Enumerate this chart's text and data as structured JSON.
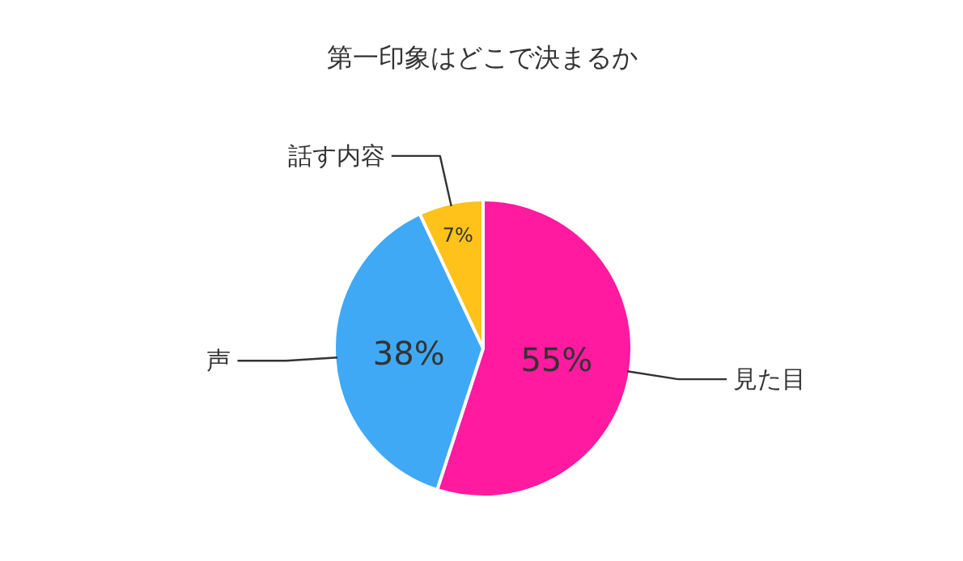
{
  "chart_data": {
    "type": "pie",
    "title": "第一印象はどこで決まるか",
    "categories": [
      "見た目",
      "声",
      "話す内容"
    ],
    "values": [
      55,
      38,
      7
    ],
    "colors": [
      "#ff1aa0",
      "#3fa9f5",
      "#ffc21a"
    ],
    "value_labels": [
      "55%",
      "38%",
      "7%"
    ]
  }
}
